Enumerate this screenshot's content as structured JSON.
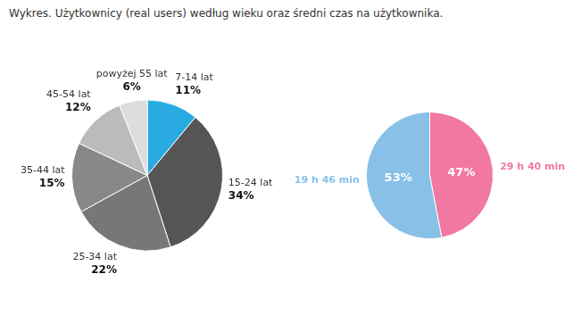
{
  "chart_data": [
    {
      "type": "pie",
      "title": "Wykres. Użytkownicy (real users) według wieku oraz średni czas na użytkownika.",
      "categories": [
        "7-14 lat",
        "15-24 lat",
        "25-34 lat",
        "35-44 lat",
        "45-54 lat",
        "powyżej 55 lat"
      ],
      "values": [
        11,
        34,
        22,
        15,
        12,
        6
      ],
      "value_labels": [
        "11%",
        "34%",
        "22%",
        "15%",
        "12%",
        "6%"
      ],
      "colors": [
        "#29abe2",
        "#555555",
        "#777777",
        "#888888",
        "#bbbbbb",
        "#dddddd"
      ],
      "data_labels": true
    },
    {
      "type": "pie",
      "categories": [
        "29 h 40 min",
        "19 h 46 min"
      ],
      "values": [
        47,
        53
      ],
      "value_labels": [
        "47%",
        "53%"
      ],
      "colors": [
        "#f178a0",
        "#88c0e8"
      ],
      "data_labels": true
    }
  ]
}
